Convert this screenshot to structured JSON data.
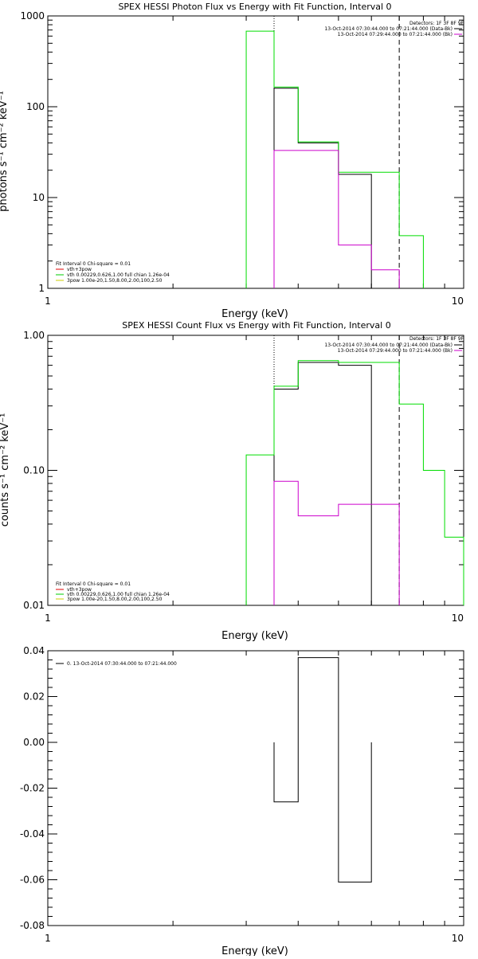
{
  "chart_data": [
    {
      "type": "line",
      "title": "SPEX HESSI Photon Flux vs Energy with Fit Function, Interval 0",
      "xlabel": "Energy (keV)",
      "ylabel": "photons s⁻¹ cm⁻² keV⁻¹",
      "xscale": "log",
      "yscale": "log",
      "xlim": [
        1,
        10
      ],
      "ylim": [
        1,
        1000
      ],
      "x_ticks": [
        1,
        10
      ],
      "x_tick_labels": [
        "1",
        "10"
      ],
      "y_ticks": [
        1,
        10,
        100,
        1000
      ],
      "y_tick_labels": [
        "1",
        "10",
        "100",
        "1000"
      ],
      "vlines": [
        {
          "x": 3.5,
          "style": "dotted"
        },
        {
          "x": 7.0,
          "style": "dashed"
        }
      ],
      "legend_topright": {
        "header": "Detectors: 1F 3F 8F 9F",
        "entries": [
          {
            "text": "13-Oct-2014 07:30:44.000 to 07:21:44.000 (Data-Bk)",
            "color": "#000000"
          },
          {
            "text": "13-Oct-2014 07:29:44.000 to 07:21:44.000 (Bk)",
            "color": "#cc00cc"
          }
        ]
      },
      "legend_bottomleft": {
        "header": "Fit Interval 0   Chi-square = 0.01",
        "entries": [
          {
            "text": "vth+3pow",
            "color": "#e00000"
          },
          {
            "text": "vth 0.00229,0.626,1.00  full chian 1.26e-04",
            "color": "#00cc00"
          },
          {
            "text": "3pow 1.00e-20,1.50,8.00,2.00,100,2.50",
            "color": "#cccc00"
          }
        ]
      },
      "series": [
        {
          "name": "13-Oct-2014 07:30:44.000 to 07:21:44.000 (Data-Bk)",
          "color": "#000000",
          "steps": [
            [
              3.5,
              4.0,
              160
            ],
            [
              4.0,
              5.0,
              40
            ],
            [
              5.0,
              6.0,
              18
            ]
          ]
        },
        {
          "name": "vth+3pow",
          "color": "#00dd00",
          "steps": [
            [
              3.0,
              3.5,
              680
            ],
            [
              3.5,
              4.0,
              165
            ],
            [
              4.0,
              5.0,
              41
            ],
            [
              5.0,
              6.0,
              19
            ],
            [
              6.0,
              7.0,
              19
            ],
            [
              7.0,
              8.0,
              3.8
            ]
          ]
        },
        {
          "name": "13-Oct-2014 07:29:44.000 to 07:21:44.000 (Bk)",
          "color": "#cc00cc",
          "steps": [
            [
              3.5,
              4.0,
              33
            ],
            [
              4.0,
              5.0,
              33
            ],
            [
              5.0,
              6.0,
              3.0
            ],
            [
              6.0,
              7.0,
              1.6
            ]
          ]
        }
      ]
    },
    {
      "type": "line",
      "title": "SPEX HESSI Count Flux vs Energy with Fit Function, Interval 0",
      "xlabel": "Energy (keV)",
      "ylabel": "counts s⁻¹ cm⁻² keV⁻¹",
      "xscale": "log",
      "yscale": "log",
      "xlim": [
        1,
        10
      ],
      "ylim": [
        0.01,
        1.0
      ],
      "x_ticks": [
        1,
        10
      ],
      "x_tick_labels": [
        "1",
        "10"
      ],
      "y_ticks": [
        0.01,
        0.1,
        1.0
      ],
      "y_tick_labels": [
        "0.01",
        "0.10",
        "1.00"
      ],
      "vlines": [
        {
          "x": 3.5,
          "style": "dotted"
        },
        {
          "x": 7.0,
          "style": "dashed"
        }
      ],
      "legend_topright": {
        "header": "Detectors: 1F 3F 8F 9F",
        "entries": [
          {
            "text": "13-Oct-2014 07:30:44.000 to 07:21:44.000 (Data-Bk)",
            "color": "#000000"
          },
          {
            "text": "13-Oct-2014 07:29:44.000 to 07:21:44.000 (Bk)",
            "color": "#cc00cc"
          }
        ]
      },
      "legend_bottomleft": {
        "header": "Fit Interval 0   Chi-square = 0.01",
        "entries": [
          {
            "text": "vth+3pow",
            "color": "#e00000"
          },
          {
            "text": "vth 0.00229,0.626,1.00  full chian 1.26e-04",
            "color": "#00cc00"
          },
          {
            "text": "3pow 1.00e-20,1.50,8.00,2.00,100,2.50",
            "color": "#cccc00"
          }
        ]
      },
      "series": [
        {
          "name": "13-Oct-2014 07:30:44.000 to 07:21:44.000 (Data-Bk)",
          "color": "#000000",
          "steps": [
            [
              3.5,
              4.0,
              0.4
            ],
            [
              4.0,
              5.0,
              0.63
            ],
            [
              5.0,
              6.0,
              0.6
            ]
          ]
        },
        {
          "name": "vth+3pow",
          "color": "#00dd00",
          "steps": [
            [
              3.0,
              3.5,
              0.13
            ],
            [
              3.5,
              4.0,
              0.42
            ],
            [
              4.0,
              5.0,
              0.65
            ],
            [
              5.0,
              6.0,
              0.63
            ],
            [
              6.0,
              7.0,
              0.63
            ],
            [
              7.0,
              8.0,
              0.31
            ],
            [
              8.0,
              9.0,
              0.1
            ],
            [
              9.0,
              10.0,
              0.032
            ]
          ]
        },
        {
          "name": "13-Oct-2014 07:29:44.000 to 07:21:44.000 (Bk)",
          "color": "#cc00cc",
          "steps": [
            [
              3.5,
              4.0,
              0.083
            ],
            [
              4.0,
              5.0,
              0.046
            ],
            [
              5.0,
              6.0,
              0.056
            ],
            [
              6.0,
              7.0,
              0.056
            ]
          ]
        }
      ]
    },
    {
      "type": "line",
      "title": "",
      "xlabel": "Energy (keV)",
      "ylabel": "",
      "xscale": "log",
      "yscale": "linear",
      "xlim": [
        1,
        10
      ],
      "ylim": [
        -0.08,
        0.04
      ],
      "x_ticks": [
        1,
        10
      ],
      "x_tick_labels": [
        "1",
        "10"
      ],
      "y_ticks": [
        -0.08,
        -0.06,
        -0.04,
        -0.02,
        0.0,
        0.02,
        0.04
      ],
      "y_tick_labels": [
        "-0.08",
        "-0.06",
        "-0.04",
        "-0.02",
        "0.00",
        "0.02",
        "0.04"
      ],
      "legend_topleft": {
        "entries": [
          {
            "text": "0. 13-Oct-2014 07:30:44.000 to 07:21:44.000",
            "color": "#000000"
          }
        ]
      },
      "series": [
        {
          "name": "0. 13-Oct-2014 07:30:44.000 to 07:21:44.000",
          "color": "#000000",
          "steps": [
            [
              3.5,
              4.0,
              -0.026
            ],
            [
              4.0,
              5.0,
              0.037
            ],
            [
              5.0,
              6.0,
              -0.061
            ]
          ]
        }
      ]
    }
  ]
}
